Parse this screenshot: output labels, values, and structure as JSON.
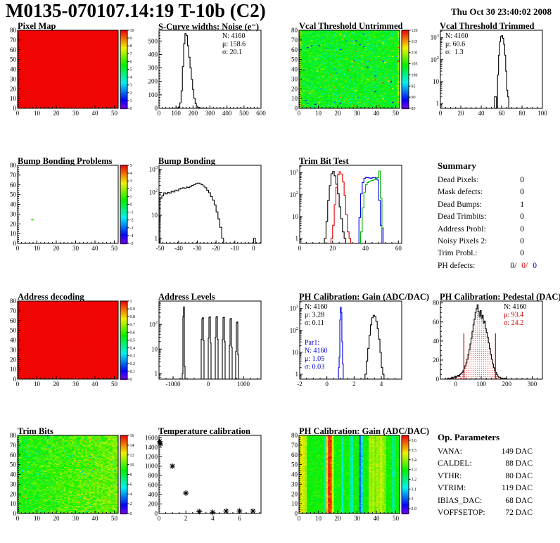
{
  "header": {
    "title": "M0135-070107.14:19 T-10b (C2)",
    "timestamp": "Thu Oct 30 23:40:02 2008"
  },
  "summary": {
    "title": "Summary",
    "rows": [
      {
        "label": "Dead Pixels:",
        "value": "0"
      },
      {
        "label": "Mask defects:",
        "value": "0"
      },
      {
        "label": "Dead Bumps:",
        "value": "1"
      },
      {
        "label": "Dead Trimbits:",
        "value": "0"
      },
      {
        "label": "Address Probl:",
        "value": "0"
      },
      {
        "label": "Noisy Pixels 2:",
        "value": "0"
      },
      {
        "label": "Trim Probl.:",
        "value": "0"
      }
    ],
    "ph_defects": {
      "label": "PH defects:",
      "parts": [
        {
          "text": "0/",
          "color": "#000000"
        },
        {
          "text": "0/",
          "color": "#cc0000"
        },
        {
          "text": "0",
          "color": "#0000cc"
        }
      ]
    }
  },
  "op_parameters": {
    "title": "Op. Parameters",
    "rows": [
      {
        "label": "VANA:",
        "value": "149 DAC"
      },
      {
        "label": "CALDEL:",
        "value": "88 DAC"
      },
      {
        "label": "VTHR:",
        "value": "80 DAC"
      },
      {
        "label": "VTRIM:",
        "value": "119 DAC"
      },
      {
        "label": "IBIAS_DAC:",
        "value": "68 DAC"
      },
      {
        "label": "VOFFSETOP:",
        "value": "72 DAC"
      }
    ]
  },
  "chart_data": [
    {
      "id": "pixel_map",
      "type": "heatmap",
      "title": "Pixel Map",
      "zmin": 0,
      "zmax": 10,
      "colorbar_ticks": [
        0,
        1,
        2,
        3,
        4,
        5,
        6,
        7,
        8,
        9,
        10
      ],
      "fill": {
        "mode": "uniform",
        "value": 10
      },
      "note": "all 4160 pixels responding (uniform red)"
    },
    {
      "id": "scurve_noise",
      "type": "hist",
      "title": "S-Curve widths: Noise (e⁻)",
      "ylog": false,
      "xlim": [
        0,
        600
      ],
      "xticks": [
        0,
        100,
        200,
        300,
        400,
        500,
        600
      ],
      "xminor": 20,
      "ylim": [
        0,
        580
      ],
      "yticks": [
        0,
        100,
        200,
        300,
        400,
        500
      ],
      "yminor": 20,
      "stats": {
        "anchor": "tr",
        "lines": [
          {
            "text": "N: 4160",
            "color": "#000000"
          },
          {
            "text": "μ: 158.6",
            "color": "#000000"
          },
          {
            "text": "σ: 20.1",
            "color": "#000000"
          }
        ]
      },
      "series": [
        {
          "color": "#000000",
          "x_start": 85,
          "bin_width": 7.5,
          "counts": [
            1,
            1,
            2,
            4,
            10,
            40,
            130,
            310,
            480,
            555,
            540,
            465,
            380,
            300,
            215,
            140,
            75,
            35,
            15,
            6,
            3,
            2,
            1,
            0,
            1,
            1
          ]
        }
      ]
    },
    {
      "id": "vcal_untrimmed",
      "type": "heatmap",
      "title": "Vcal Threshold Untrimmed",
      "zmin": 85,
      "zmax": 120,
      "colorbar_ticks": [
        85,
        90,
        95,
        100,
        105,
        110,
        115,
        120
      ],
      "fill": {
        "mode": "noise",
        "mean": 104,
        "spread": 3.5,
        "outlier_frac": 0.04,
        "outlier_lo": 88,
        "outlier_hi": 119,
        "edge_boost": 5,
        "seed": 12345
      }
    },
    {
      "id": "vcal_trimmed",
      "type": "hist",
      "title": "Vcal Threshold Trimmed",
      "ylog": true,
      "xlim": [
        0,
        100
      ],
      "xticks": [
        0,
        20,
        40,
        60,
        80,
        100
      ],
      "xminor": 5,
      "ylim": [
        0.6,
        2200
      ],
      "stats": {
        "anchor": "tl",
        "lines": [
          {
            "text": "N: 4160",
            "color": "#000000"
          },
          {
            "text": "μ: 60.6",
            "color": "#000000"
          },
          {
            "text": "σ:  1.3",
            "color": "#000000"
          }
        ]
      },
      "series": [
        {
          "color": "#000000",
          "x_start": 53,
          "bin_width": 1,
          "counts": [
            2,
            2,
            0,
            20,
            160,
            650,
            1150,
            1250,
            950,
            500,
            160,
            30,
            4,
            2
          ]
        }
      ]
    },
    {
      "id": "bump_problems",
      "type": "heatmap",
      "title": "Bump Bonding Problems",
      "zmin": -5,
      "zmax": 5,
      "colorbar_ticks": [
        -5,
        -4,
        -3,
        -2,
        -1,
        0,
        1,
        2,
        3,
        4,
        5
      ],
      "fill": {
        "mode": "points",
        "points": [
          {
            "x": 7,
            "y": 24,
            "value": 1
          }
        ]
      }
    },
    {
      "id": "bump_bonding",
      "type": "hist",
      "title": "Bump Bonding",
      "ylog": true,
      "xlim": [
        -50.5,
        4
      ],
      "xticks": [
        -50,
        -40,
        -30,
        -20,
        -10,
        0
      ],
      "xminor": 2,
      "ylim": [
        0.6,
        1500
      ],
      "series": [
        {
          "color": "#000000",
          "x_start": -50,
          "bin_width": 1,
          "counts": [
            55,
            70,
            95,
            85,
            100,
            92,
            112,
            104,
            125,
            115,
            138,
            148,
            158,
            150,
            168,
            162,
            182,
            198,
            218,
            242,
            252,
            238,
            218,
            188,
            158,
            122,
            96,
            66,
            46,
            28,
            14,
            7,
            3,
            1,
            0,
            0,
            0,
            0,
            0,
            0,
            0,
            0,
            0,
            0,
            0,
            0,
            0,
            0,
            0,
            0,
            1
          ]
        }
      ]
    },
    {
      "id": "trim_bit_test",
      "type": "hist",
      "title": "Trim Bit Test",
      "ylog": true,
      "xlim": [
        0,
        62
      ],
      "xticks": [
        0,
        20,
        40,
        60
      ],
      "xminor": 4,
      "ylim": [
        0.6,
        2200
      ],
      "series": [
        {
          "color": "#000000",
          "x_start": 15,
          "bin_width": 1,
          "counts": [
            1,
            6,
            55,
            260,
            900,
            1150,
            730,
            300,
            110,
            28,
            8,
            2,
            1
          ]
        },
        {
          "color": "#e60000",
          "x_start": 19,
          "bin_width": 1,
          "counts": [
            1,
            4,
            35,
            220,
            820,
            1120,
            880,
            380,
            90,
            12,
            2,
            1
          ]
        },
        {
          "color": "#0000e6",
          "x_start": 36,
          "bin_width": 1,
          "counts": [
            9,
            110,
            360,
            560,
            620,
            600,
            580,
            560,
            600,
            615,
            575,
            470,
            55,
            4
          ]
        },
        {
          "color": "#00b400",
          "x_start": 37,
          "bin_width": 1,
          "counts": [
            2,
            25,
            130,
            290,
            360,
            410,
            430,
            455,
            480,
            525,
            600,
            1200,
            70,
            3
          ]
        }
      ]
    },
    {
      "id": "address_decoding",
      "type": "heatmap",
      "title": "Address decoding",
      "zmin": 0,
      "zmax": 1,
      "colorbar_ticks": [
        0,
        0.1,
        0.2,
        0.3,
        0.4,
        0.5,
        0.6,
        0.7,
        0.8,
        0.9,
        1
      ],
      "fill": {
        "mode": "uniform",
        "value": 1
      },
      "note": "all pixels decode correctly (uniform red)"
    },
    {
      "id": "address_levels",
      "type": "hist",
      "title": "Address Levels",
      "ylog": true,
      "xlim": [
        -1400,
        1500
      ],
      "xticks": [
        -1000,
        0,
        1000
      ],
      "xminor": 200,
      "ylim": [
        0.6,
        900
      ],
      "series": [
        {
          "color": "#000000",
          "bin_width": 20,
          "sparse_bins": [
            [
              -740,
              1
            ],
            [
              -720,
              210
            ],
            [
              -700,
              520
            ],
            [
              -680,
              2
            ],
            [
              -200,
              25
            ],
            [
              -180,
              170
            ],
            [
              -160,
              190
            ],
            [
              -140,
              22
            ],
            [
              0,
              28
            ],
            [
              20,
              195
            ],
            [
              40,
              205
            ],
            [
              60,
              18
            ],
            [
              200,
              30
            ],
            [
              220,
              200
            ],
            [
              240,
              210
            ],
            [
              260,
              25
            ],
            [
              400,
              24
            ],
            [
              420,
              190
            ],
            [
              440,
              196
            ],
            [
              460,
              20
            ],
            [
              600,
              14
            ],
            [
              620,
              168
            ],
            [
              640,
              175
            ],
            [
              660,
              12
            ],
            [
              780,
              8
            ],
            [
              800,
              118
            ],
            [
              820,
              126
            ],
            [
              840,
              6
            ]
          ]
        }
      ]
    },
    {
      "id": "ph_gain_hist",
      "type": "hist",
      "title": "PH Calibration: Gain (ADC/DAC)",
      "ylog": true,
      "xlim": [
        -2,
        5.5
      ],
      "xticks": [
        -2,
        0,
        2,
        4
      ],
      "xminor": 0.5,
      "ylim": [
        0.6,
        2200
      ],
      "stats": {
        "anchor": "tl",
        "lines": [
          {
            "text": "N: 4160",
            "color": "#000000"
          },
          {
            "text": "μ: 3.28",
            "color": "#000000"
          },
          {
            "text": "σ: 0.11",
            "color": "#000000"
          }
        ]
      },
      "stats2": {
        "anchor": "ml",
        "lines": [
          {
            "text": "Par1:",
            "color": "#0000cc"
          },
          {
            "text": "N: 4160",
            "color": "#0000cc"
          },
          {
            "text": "μ: 1.05",
            "color": "#0000cc"
          },
          {
            "text": "σ: 0.03",
            "color": "#0000cc"
          }
        ]
      },
      "series": [
        {
          "color": "#0000e6",
          "x_start": 0.85,
          "bin_width": 0.05,
          "counts": [
            2,
            6,
            300,
            1150,
            650,
            30,
            3
          ]
        },
        {
          "color": "#000000",
          "x_start": 2.8,
          "bin_width": 0.1,
          "counts": [
            1,
            4,
            15,
            60,
            180,
            380,
            490,
            430,
            260,
            120,
            40,
            10,
            2,
            1
          ]
        }
      ]
    },
    {
      "id": "ph_pedestal",
      "type": "hist",
      "title": "PH Calibration: Pedestal (DAC)",
      "ylog": false,
      "xlim": [
        -60,
        340
      ],
      "xticks": [
        0,
        100,
        200,
        300
      ],
      "xminor": 20,
      "ylim": [
        0,
        82
      ],
      "yticks": [
        0,
        20,
        40,
        60,
        80
      ],
      "yminor": 5,
      "stats": {
        "anchor": "tr",
        "lines": [
          {
            "text": "N: 4160",
            "color": "#000000"
          },
          {
            "text": "μ: 93.4",
            "color": "#cc0000"
          },
          {
            "text": "σ: 24.2",
            "color": "#cc0000"
          }
        ]
      },
      "vlines": [
        {
          "x": 32,
          "y": 48,
          "color": "#cc0000"
        },
        {
          "x": 156,
          "y": 48,
          "color": "#cc0000"
        }
      ],
      "series": [
        {
          "color": "#000000",
          "fill": "dotted-red",
          "x_start": -32,
          "bin_width": 4,
          "counts": [
            1,
            0,
            1,
            1,
            2,
            1,
            2,
            3,
            2,
            3,
            4,
            3,
            5,
            6,
            7,
            9,
            11,
            14,
            17,
            21,
            26,
            31,
            37,
            43,
            50,
            57,
            63,
            70,
            74,
            78,
            71,
            66,
            72,
            64,
            67,
            59,
            61,
            53,
            49,
            44,
            38,
            32,
            26,
            21,
            16,
            12,
            9,
            7,
            5,
            3,
            2,
            2,
            1,
            1,
            0,
            1,
            0,
            1
          ]
        }
      ]
    },
    {
      "id": "trim_bits",
      "type": "heatmap",
      "title": "Trim Bits",
      "zmin": 0,
      "zmax": 16,
      "colorbar_ticks": [
        0,
        2,
        4,
        6,
        8,
        10,
        12,
        14,
        16
      ],
      "fill": {
        "mode": "noise",
        "mean": 9.8,
        "spread": 1.6,
        "outlier_frac": 0.05,
        "outlier_lo": 4,
        "outlier_hi": 14.5,
        "col_gradient": 1.6,
        "seed": 777
      }
    },
    {
      "id": "temp_calibration",
      "type": "scatter",
      "title": "Temperature calibration",
      "xlim": [
        0,
        7.6
      ],
      "xticks": [
        0,
        2,
        4,
        6
      ],
      "xminor": 0.5,
      "ylim": [
        0,
        1650
      ],
      "yticks": [
        0,
        200,
        400,
        600,
        800,
        1000,
        1200,
        1400,
        1600
      ],
      "yminor": 50,
      "points": [
        [
          0.05,
          1520
        ],
        [
          0.1,
          1470
        ],
        [
          1,
          1000
        ],
        [
          2,
          430
        ],
        [
          3,
          40
        ],
        [
          4,
          25
        ],
        [
          5,
          50
        ],
        [
          6,
          50
        ],
        [
          7,
          50
        ]
      ]
    },
    {
      "id": "ph_gain_map",
      "type": "heatmap",
      "title": "PH Calibration: Gain (ADC/DAC)",
      "zmin": 2.85,
      "zmax": 3.65,
      "colorbar_ticks": [
        2.9,
        3,
        3.1,
        3.2,
        3.3,
        3.4,
        3.5,
        3.6
      ],
      "fill": {
        "mode": "column-noise",
        "base": 3.3,
        "spread": 0.04,
        "seed": 4242,
        "columns": {
          "0": 3.45,
          "1": 3.47,
          "2": 3.44,
          "3": 3.42,
          "13": 3.18,
          "14": 3.5,
          "15": 3.62,
          "16": 3.6,
          "17": 3.45,
          "22": 3.15,
          "26": 3.2,
          "27": 3.16,
          "31": 3.02,
          "32": 3.1,
          "36": 3.42,
          "37": 3.4,
          "38": 3.43,
          "39": 3.38,
          "40": 3.42,
          "41": 3.4,
          "42": 3.44,
          "43": 3.4,
          "44": 3.38,
          "48": 3.2,
          "49": 3.22
        }
      }
    }
  ]
}
